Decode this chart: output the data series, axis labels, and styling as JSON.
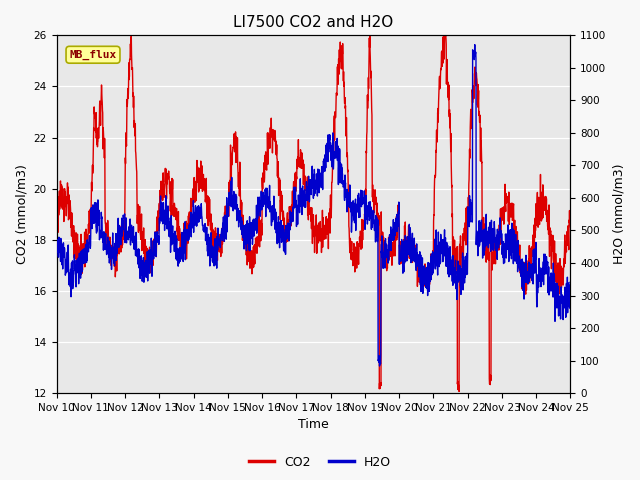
{
  "title": "LI7500 CO2 and H2O",
  "xlabel": "Time",
  "ylabel_left": "CO2 (mmol/m3)",
  "ylabel_right": "H2O (mmol/m3)",
  "ylim_left": [
    12,
    26
  ],
  "ylim_right": [
    0,
    1100
  ],
  "yticks_left": [
    12,
    14,
    16,
    18,
    20,
    22,
    24,
    26
  ],
  "yticks_right": [
    0,
    100,
    200,
    300,
    400,
    500,
    600,
    700,
    800,
    900,
    1000,
    1100
  ],
  "xtick_labels": [
    "Nov 10",
    "Nov 11",
    "Nov 12",
    "Nov 13",
    "Nov 14",
    "Nov 15",
    "Nov 16",
    "Nov 17",
    "Nov 18",
    "Nov 19",
    "Nov 20",
    "Nov 21",
    "Nov 22",
    "Nov 23",
    "Nov 24",
    "Nov 25"
  ],
  "co2_color": "#dd0000",
  "h2o_color": "#0000cc",
  "fig_bg_color": "#f8f8f8",
  "plot_bg_color": "#e8e8e8",
  "watermark_text": "MB_flux",
  "watermark_color": "#8b0000",
  "watermark_bg": "#ffff99",
  "watermark_edge": "#aaaa00",
  "legend_co2": "CO2",
  "legend_h2o": "H2O",
  "line_width": 1.0,
  "title_fontsize": 11,
  "axis_fontsize": 9,
  "tick_fontsize": 7.5,
  "legend_fontsize": 9
}
